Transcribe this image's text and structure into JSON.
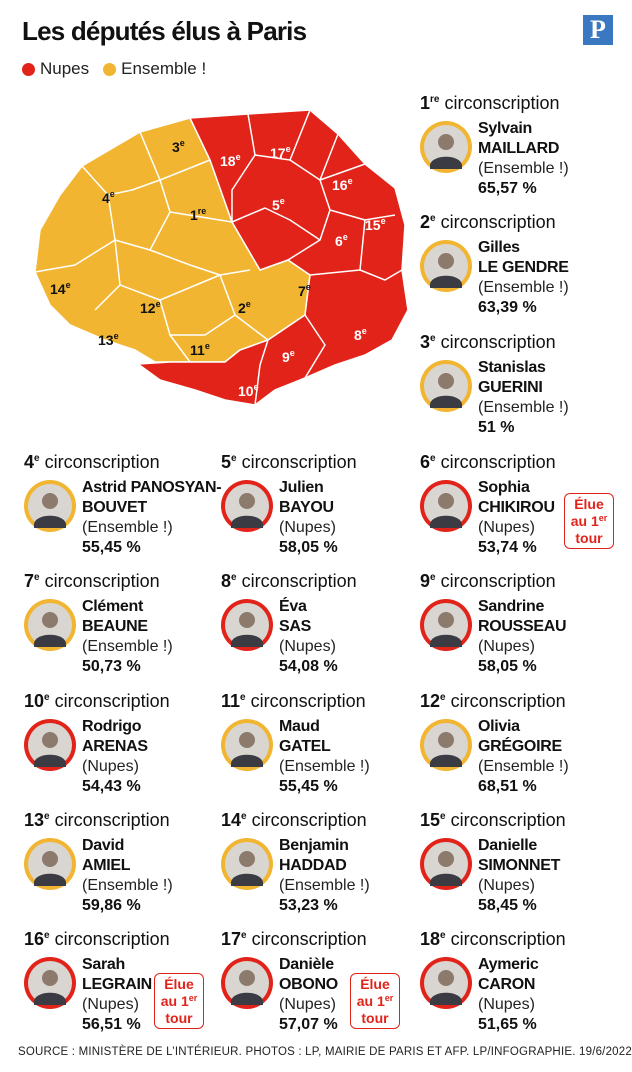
{
  "title": "Les députés élus à Paris",
  "logo_letter": "P",
  "legend": [
    {
      "label": "Nupes",
      "color": "#e2231a"
    },
    {
      "label": "Ensemble !",
      "color": "#f1b531"
    }
  ],
  "heading_word": "circonscription",
  "badge": {
    "line1": "Élue",
    "line2": "au 1",
    "sup": "er",
    "line3": "tour"
  },
  "map_labels": [
    {
      "n": "1",
      "sup": "re"
    },
    {
      "n": "2",
      "sup": "e"
    },
    {
      "n": "3",
      "sup": "e"
    },
    {
      "n": "4",
      "sup": "e"
    },
    {
      "n": "5",
      "sup": "e"
    },
    {
      "n": "6",
      "sup": "e"
    },
    {
      "n": "7",
      "sup": "e"
    },
    {
      "n": "8",
      "sup": "e"
    },
    {
      "n": "9",
      "sup": "e"
    },
    {
      "n": "10",
      "sup": "e"
    },
    {
      "n": "11",
      "sup": "e"
    },
    {
      "n": "12",
      "sup": "e"
    },
    {
      "n": "13",
      "sup": "e"
    },
    {
      "n": "14",
      "sup": "e"
    },
    {
      "n": "15",
      "sup": "e"
    },
    {
      "n": "16",
      "sup": "e"
    },
    {
      "n": "17",
      "sup": "e"
    },
    {
      "n": "18",
      "sup": "e"
    }
  ],
  "deputies": [
    {
      "num": "1",
      "sup": "re",
      "first": "Sylvain",
      "last": "MAILLARD",
      "party": "(Ensemble !)",
      "pct": "65,57 %",
      "ring": "#f1b531"
    },
    {
      "num": "2",
      "sup": "e",
      "first": "Gilles",
      "last": "LE GENDRE",
      "party": "(Ensemble !)",
      "pct": "63,39 %",
      "ring": "#f1b531"
    },
    {
      "num": "3",
      "sup": "e",
      "first": "Stanislas",
      "last": "GUERINI",
      "party": "(Ensemble !)",
      "pct": "51 %",
      "ring": "#f1b531"
    },
    {
      "num": "4",
      "sup": "e",
      "first": "Astrid PANOSYAN-",
      "last": "BOUVET",
      "party": "(Ensemble !)",
      "pct": "55,45 %",
      "ring": "#f1b531"
    },
    {
      "num": "5",
      "sup": "e",
      "first": "Julien",
      "last": "BAYOU",
      "party": "(Nupes)",
      "pct": "58,05 %",
      "ring": "#e2231a"
    },
    {
      "num": "6",
      "sup": "e",
      "first": "Sophia",
      "last": "CHIKIROU",
      "party": "(Nupes)",
      "pct": "53,74 %",
      "ring": "#e2231a"
    },
    {
      "num": "7",
      "sup": "e",
      "first": "Clément",
      "last": "BEAUNE",
      "party": "(Ensemble !)",
      "pct": "50,73 %",
      "ring": "#f1b531"
    },
    {
      "num": "8",
      "sup": "e",
      "first": "Éva",
      "last": "SAS",
      "party": "(Nupes)",
      "pct": "54,08 %",
      "ring": "#e2231a"
    },
    {
      "num": "9",
      "sup": "e",
      "first": "Sandrine",
      "last": "ROUSSEAU",
      "party": "(Nupes)",
      "pct": "58,05 %",
      "ring": "#e2231a"
    },
    {
      "num": "10",
      "sup": "e",
      "first": "Rodrigo",
      "last": "ARENAS",
      "party": "(Nupes)",
      "pct": "54,43 %",
      "ring": "#e2231a"
    },
    {
      "num": "11",
      "sup": "e",
      "first": "Maud",
      "last": "GATEL",
      "party": "(Ensemble !)",
      "pct": "55,45 %",
      "ring": "#f1b531"
    },
    {
      "num": "12",
      "sup": "e",
      "first": "Olivia",
      "last": "GRÉGOIRE",
      "party": "(Ensemble !)",
      "pct": "68,51 %",
      "ring": "#f1b531"
    },
    {
      "num": "13",
      "sup": "e",
      "first": "David",
      "last": "AMIEL",
      "party": "(Ensemble !)",
      "pct": "59,86 %",
      "ring": "#f1b531"
    },
    {
      "num": "14",
      "sup": "e",
      "first": "Benjamin",
      "last": "HADDAD",
      "party": "(Ensemble !)",
      "pct": "53,23 %",
      "ring": "#f1b531"
    },
    {
      "num": "15",
      "sup": "e",
      "first": "Danielle",
      "last": "SIMONNET",
      "party": "(Nupes)",
      "pct": "58,45 %",
      "ring": "#e2231a"
    },
    {
      "num": "16",
      "sup": "e",
      "first": "Sarah",
      "last": "LEGRAIN",
      "party": "(Nupes)",
      "pct": "56,51 %",
      "ring": "#e2231a"
    },
    {
      "num": "17",
      "sup": "e",
      "first": "Danièle",
      "last": "OBONO",
      "party": "(Nupes)",
      "pct": "57,07 %",
      "ring": "#e2231a"
    },
    {
      "num": "18",
      "sup": "e",
      "first": "Aymeric",
      "last": "CARON",
      "party": "(Nupes)",
      "pct": "51,65 %",
      "ring": "#e2231a"
    }
  ],
  "footer": "SOURCE : MINISTÈRE DE L’INTÉRIEUR.  PHOTOS : LP, MAIRIE DE PARIS ET AFP.   LP/INFOGRAPHIE.  19/6/2022"
}
